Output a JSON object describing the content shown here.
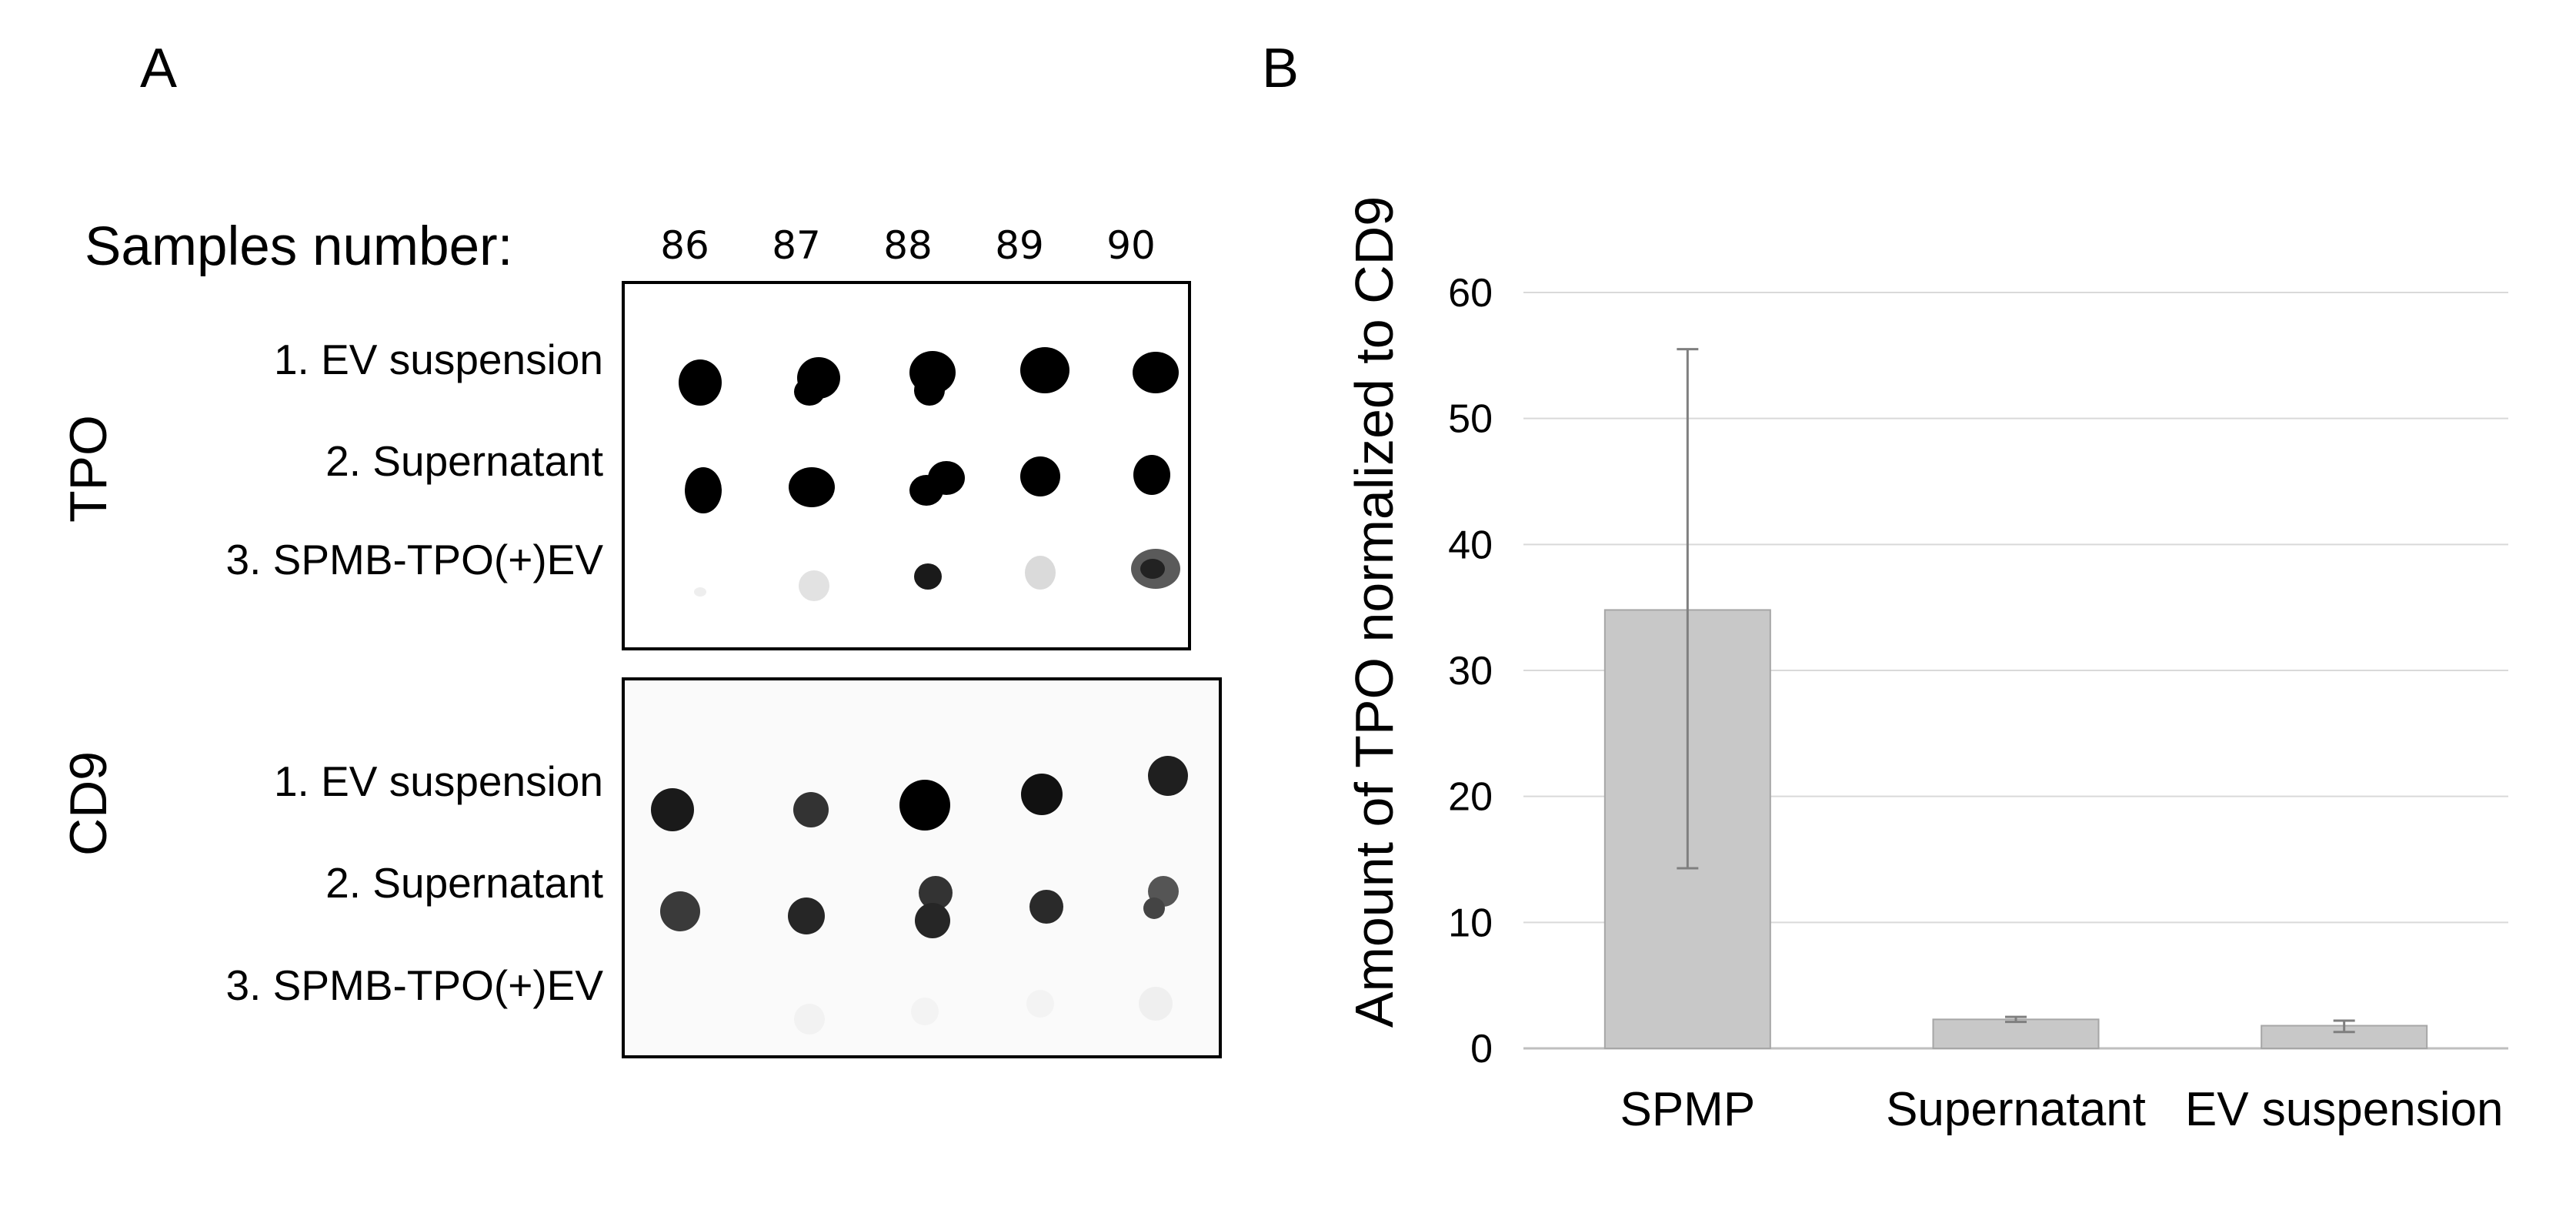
{
  "panel_a": {
    "letter": "A",
    "samples_label": "Samples number:",
    "sample_numbers": [
      "86",
      "87",
      "88",
      "89",
      "90"
    ],
    "tpo_blot": {
      "label": "TPO",
      "rows": [
        "1. EV suspension",
        "2. Supernatant",
        "3. SPMB-TPO(+)EV"
      ]
    },
    "cd9_blot": {
      "label": "CD9",
      "rows": [
        "1. EV suspension",
        "2. Supernatant",
        "3. SPMB-TPO(+)EV"
      ]
    }
  },
  "panel_b": {
    "letter": "B"
  },
  "chart_data": {
    "type": "bar",
    "categories": [
      "SPMP",
      "Supernatant",
      "EV suspension"
    ],
    "values": [
      34.8,
      2.3,
      1.8
    ],
    "error_low": [
      14.3,
      2.1,
      1.3
    ],
    "error_high": [
      55.5,
      2.5,
      2.2
    ],
    "ylabel": "Amount  of TPO normalized  to CD9",
    "xlabel": "",
    "title": "",
    "ylim": [
      0,
      60
    ],
    "yticks": [
      0,
      10,
      20,
      30,
      40,
      50,
      60
    ],
    "grid": true,
    "bar_color": "#c8c8c8",
    "error_bar_color": "#7f7f7f"
  }
}
